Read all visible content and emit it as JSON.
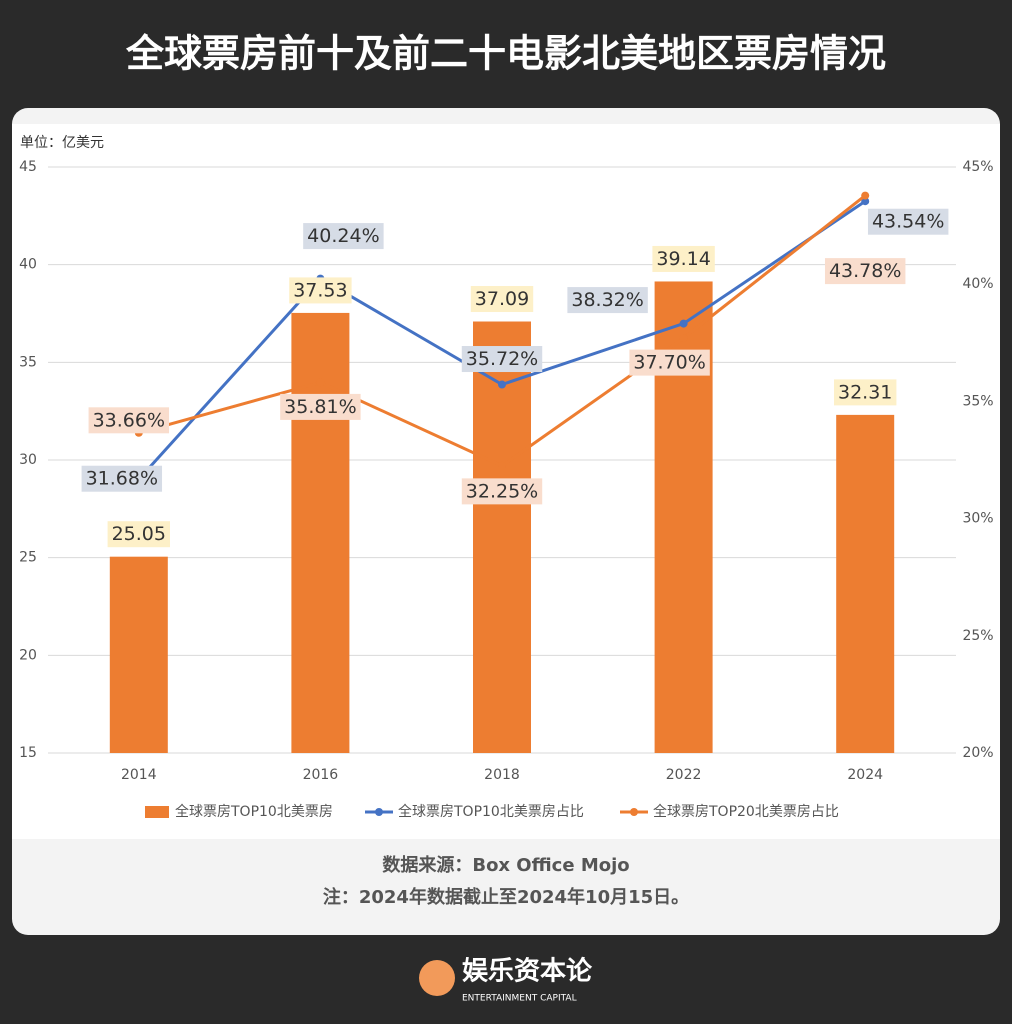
{
  "chart_data": {
    "type": "combo",
    "title": "全球票房前十及前二十电影北美地区票房情况",
    "unit_label": "单位：亿美元",
    "source": "数据来源：Box Office Mojo",
    "note": "注：2024年数据截止至2024年10月15日。",
    "brand": "娱乐资本论",
    "brand_sub": "ENTERTAINMENT CAPITAL",
    "categories": [
      "2014",
      "2016",
      "2018",
      "2022",
      "2024"
    ],
    "series": [
      {
        "name": "全球票房TOP10北美票房",
        "type": "bar",
        "color": "#ed7d31",
        "values": [
          25.05,
          37.53,
          37.09,
          39.14,
          32.31
        ]
      },
      {
        "name": "全球票房TOP10北美票房占比",
        "type": "line",
        "axis": "y2",
        "color": "#4472c4",
        "values": [
          31.68,
          40.24,
          35.72,
          38.32,
          43.54
        ],
        "value_labels": [
          "31.68%",
          "40.24%",
          "35.72%",
          "38.32%",
          "43.54%"
        ]
      },
      {
        "name": "全球票房TOP20北美票房占比",
        "type": "line",
        "axis": "y2",
        "color": "#ed7d31",
        "values": [
          33.66,
          35.81,
          32.25,
          37.7,
          43.78
        ],
        "value_labels": [
          "33.66%",
          "35.81%",
          "32.25%",
          "37.70%",
          "43.78%"
        ]
      }
    ],
    "ylim": [
      15,
      45
    ],
    "yticks": [
      15,
      20,
      25,
      30,
      35,
      40,
      45
    ],
    "y2lim": [
      20,
      45
    ],
    "y2ticks": [
      {
        "value": 20,
        "label": "20%"
      },
      {
        "value": 25,
        "label": "25%"
      },
      {
        "value": 30,
        "label": "30%"
      },
      {
        "value": 35,
        "label": "35%"
      },
      {
        "value": 40,
        "label": "40%"
      },
      {
        "value": 45,
        "label": "45%"
      }
    ],
    "grid": true
  }
}
